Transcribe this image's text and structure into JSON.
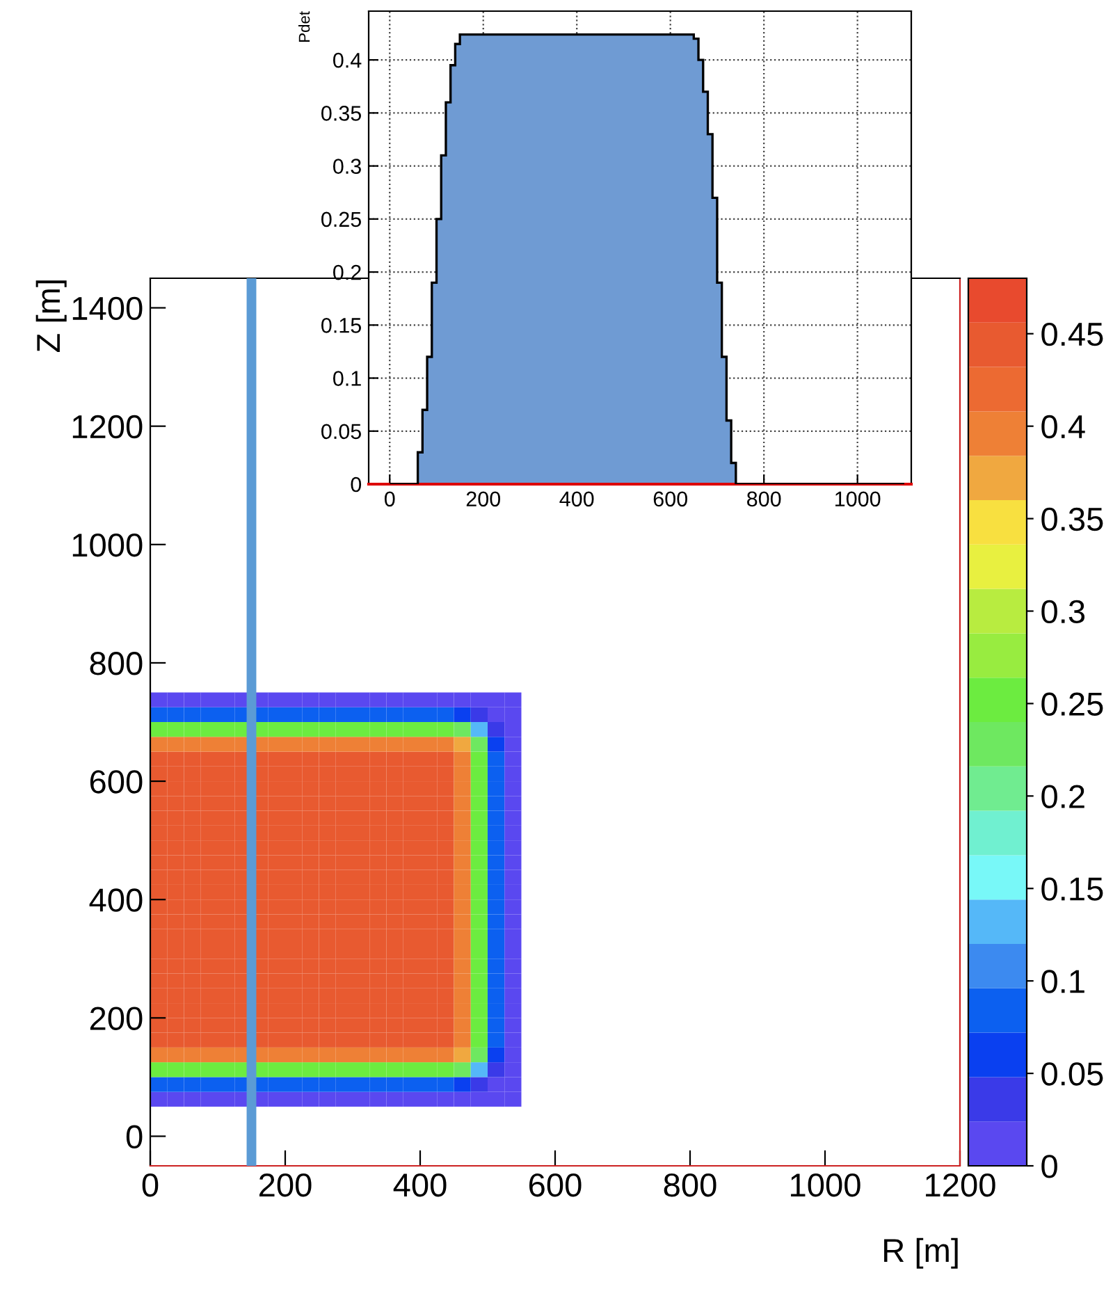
{
  "chart_data": [
    {
      "type": "heatmap",
      "xlabel": "R [m]",
      "ylabel": "Z [m]",
      "x": [
        12.5,
        37.5,
        62.5,
        87.5,
        112.5,
        137.5,
        162.5,
        187.5,
        212.5,
        237.5,
        262.5,
        287.5,
        312.5,
        337.5,
        362.5,
        387.5,
        412.5,
        437.5,
        462.5,
        487.5,
        512.5,
        537.5
      ],
      "y": [
        737.5,
        712.5,
        687.5,
        662.5,
        637.5,
        612.5,
        587.5,
        562.5,
        537.5,
        512.5,
        487.5,
        462.5,
        437.5,
        412.5,
        387.5,
        362.5,
        337.5,
        312.5,
        287.5,
        262.5,
        237.5,
        212.5,
        187.5,
        162.5,
        137.5,
        112.5,
        87.5,
        62.5
      ],
      "cells": [
        [
          0.01,
          0.01,
          0.01,
          0.01,
          0.01,
          0.01,
          0.01,
          0.01,
          0.01,
          0.01,
          0.01,
          0.01,
          0.01,
          0.01,
          0.01,
          0.01,
          0.01,
          0.01,
          0.01,
          0.01,
          0.0,
          0.0
        ],
        [
          0.08,
          0.08,
          0.08,
          0.08,
          0.08,
          0.08,
          0.08,
          0.08,
          0.08,
          0.08,
          0.08,
          0.08,
          0.08,
          0.08,
          0.08,
          0.08,
          0.08,
          0.08,
          0.07,
          0.04,
          0.01,
          0.0
        ],
        [
          0.25,
          0.25,
          0.25,
          0.25,
          0.25,
          0.25,
          0.25,
          0.25,
          0.25,
          0.25,
          0.25,
          0.25,
          0.25,
          0.25,
          0.25,
          0.25,
          0.25,
          0.25,
          0.22,
          0.14,
          0.04,
          0.01
        ],
        [
          0.4,
          0.4,
          0.4,
          0.4,
          0.4,
          0.4,
          0.4,
          0.4,
          0.4,
          0.4,
          0.4,
          0.4,
          0.4,
          0.4,
          0.4,
          0.4,
          0.4,
          0.4,
          0.36,
          0.22,
          0.07,
          0.01
        ],
        [
          0.45,
          0.45,
          0.45,
          0.45,
          0.45,
          0.45,
          0.45,
          0.45,
          0.45,
          0.45,
          0.45,
          0.45,
          0.45,
          0.45,
          0.45,
          0.45,
          0.45,
          0.45,
          0.4,
          0.25,
          0.08,
          0.01
        ],
        [
          0.45,
          0.45,
          0.45,
          0.45,
          0.45,
          0.45,
          0.45,
          0.45,
          0.45,
          0.45,
          0.45,
          0.45,
          0.45,
          0.45,
          0.45,
          0.45,
          0.45,
          0.45,
          0.4,
          0.25,
          0.08,
          0.01
        ],
        [
          0.45,
          0.45,
          0.45,
          0.45,
          0.45,
          0.45,
          0.45,
          0.45,
          0.45,
          0.45,
          0.45,
          0.45,
          0.45,
          0.45,
          0.45,
          0.45,
          0.45,
          0.45,
          0.4,
          0.25,
          0.08,
          0.01
        ],
        [
          0.45,
          0.45,
          0.45,
          0.45,
          0.45,
          0.45,
          0.45,
          0.45,
          0.45,
          0.45,
          0.45,
          0.45,
          0.45,
          0.45,
          0.45,
          0.45,
          0.45,
          0.45,
          0.4,
          0.25,
          0.08,
          0.01
        ],
        [
          0.45,
          0.45,
          0.45,
          0.45,
          0.45,
          0.45,
          0.45,
          0.45,
          0.45,
          0.45,
          0.45,
          0.45,
          0.45,
          0.45,
          0.45,
          0.45,
          0.45,
          0.45,
          0.4,
          0.25,
          0.08,
          0.01
        ],
        [
          0.45,
          0.45,
          0.45,
          0.45,
          0.45,
          0.45,
          0.45,
          0.45,
          0.45,
          0.45,
          0.45,
          0.45,
          0.45,
          0.45,
          0.45,
          0.45,
          0.45,
          0.45,
          0.4,
          0.25,
          0.08,
          0.01
        ],
        [
          0.45,
          0.45,
          0.45,
          0.45,
          0.45,
          0.45,
          0.45,
          0.45,
          0.45,
          0.45,
          0.45,
          0.45,
          0.45,
          0.45,
          0.45,
          0.45,
          0.45,
          0.45,
          0.4,
          0.25,
          0.08,
          0.01
        ],
        [
          0.45,
          0.45,
          0.45,
          0.45,
          0.45,
          0.45,
          0.45,
          0.45,
          0.45,
          0.45,
          0.45,
          0.45,
          0.45,
          0.45,
          0.45,
          0.45,
          0.45,
          0.45,
          0.4,
          0.25,
          0.08,
          0.01
        ],
        [
          0.45,
          0.45,
          0.45,
          0.45,
          0.45,
          0.45,
          0.45,
          0.45,
          0.45,
          0.45,
          0.45,
          0.45,
          0.45,
          0.45,
          0.45,
          0.45,
          0.45,
          0.45,
          0.4,
          0.25,
          0.08,
          0.01
        ],
        [
          0.45,
          0.45,
          0.45,
          0.45,
          0.45,
          0.45,
          0.45,
          0.45,
          0.45,
          0.45,
          0.45,
          0.45,
          0.45,
          0.45,
          0.45,
          0.45,
          0.45,
          0.45,
          0.4,
          0.25,
          0.08,
          0.01
        ],
        [
          0.45,
          0.45,
          0.45,
          0.45,
          0.45,
          0.45,
          0.45,
          0.45,
          0.45,
          0.45,
          0.45,
          0.45,
          0.45,
          0.45,
          0.45,
          0.45,
          0.45,
          0.45,
          0.4,
          0.25,
          0.08,
          0.01
        ],
        [
          0.45,
          0.45,
          0.45,
          0.45,
          0.45,
          0.45,
          0.45,
          0.45,
          0.45,
          0.45,
          0.45,
          0.45,
          0.45,
          0.45,
          0.45,
          0.45,
          0.45,
          0.45,
          0.4,
          0.25,
          0.08,
          0.01
        ],
        [
          0.45,
          0.45,
          0.45,
          0.45,
          0.45,
          0.45,
          0.45,
          0.45,
          0.45,
          0.45,
          0.45,
          0.45,
          0.45,
          0.45,
          0.45,
          0.45,
          0.45,
          0.45,
          0.4,
          0.25,
          0.08,
          0.01
        ],
        [
          0.45,
          0.45,
          0.45,
          0.45,
          0.45,
          0.45,
          0.45,
          0.45,
          0.45,
          0.45,
          0.45,
          0.45,
          0.45,
          0.45,
          0.45,
          0.45,
          0.45,
          0.45,
          0.4,
          0.25,
          0.08,
          0.01
        ],
        [
          0.45,
          0.45,
          0.45,
          0.45,
          0.45,
          0.45,
          0.45,
          0.45,
          0.45,
          0.45,
          0.45,
          0.45,
          0.45,
          0.45,
          0.45,
          0.45,
          0.45,
          0.45,
          0.4,
          0.25,
          0.08,
          0.01
        ],
        [
          0.45,
          0.45,
          0.45,
          0.45,
          0.45,
          0.45,
          0.45,
          0.45,
          0.45,
          0.45,
          0.45,
          0.45,
          0.45,
          0.45,
          0.45,
          0.45,
          0.45,
          0.45,
          0.4,
          0.25,
          0.08,
          0.01
        ],
        [
          0.45,
          0.45,
          0.45,
          0.45,
          0.45,
          0.45,
          0.45,
          0.45,
          0.45,
          0.45,
          0.45,
          0.45,
          0.45,
          0.45,
          0.45,
          0.45,
          0.45,
          0.45,
          0.4,
          0.25,
          0.08,
          0.01
        ],
        [
          0.45,
          0.45,
          0.45,
          0.45,
          0.45,
          0.45,
          0.45,
          0.45,
          0.45,
          0.45,
          0.45,
          0.45,
          0.45,
          0.45,
          0.45,
          0.45,
          0.45,
          0.45,
          0.4,
          0.25,
          0.08,
          0.01
        ],
        [
          0.45,
          0.45,
          0.45,
          0.45,
          0.45,
          0.45,
          0.45,
          0.45,
          0.45,
          0.45,
          0.45,
          0.45,
          0.45,
          0.45,
          0.45,
          0.45,
          0.45,
          0.45,
          0.4,
          0.25,
          0.08,
          0.01
        ],
        [
          0.45,
          0.45,
          0.45,
          0.45,
          0.45,
          0.45,
          0.45,
          0.45,
          0.45,
          0.45,
          0.45,
          0.45,
          0.45,
          0.45,
          0.45,
          0.45,
          0.45,
          0.45,
          0.4,
          0.25,
          0.08,
          0.01
        ],
        [
          0.4,
          0.4,
          0.4,
          0.4,
          0.4,
          0.4,
          0.4,
          0.4,
          0.4,
          0.4,
          0.4,
          0.4,
          0.4,
          0.4,
          0.4,
          0.4,
          0.4,
          0.4,
          0.36,
          0.22,
          0.07,
          0.01
        ],
        [
          0.25,
          0.25,
          0.25,
          0.25,
          0.25,
          0.25,
          0.25,
          0.25,
          0.25,
          0.25,
          0.25,
          0.25,
          0.25,
          0.25,
          0.25,
          0.25,
          0.25,
          0.25,
          0.22,
          0.14,
          0.04,
          0.01
        ],
        [
          0.08,
          0.08,
          0.08,
          0.08,
          0.08,
          0.08,
          0.08,
          0.08,
          0.08,
          0.08,
          0.08,
          0.08,
          0.08,
          0.08,
          0.08,
          0.08,
          0.08,
          0.08,
          0.07,
          0.04,
          0.01,
          0.0
        ],
        [
          0.01,
          0.01,
          0.01,
          0.01,
          0.01,
          0.01,
          0.01,
          0.01,
          0.01,
          0.01,
          0.01,
          0.01,
          0.01,
          0.01,
          0.01,
          0.01,
          0.01,
          0.01,
          0.01,
          0.01,
          0.0,
          0.0
        ]
      ],
      "colors": [
        "#5a48f0",
        "#3a3ae8",
        "#0a40f0",
        "#0c60f0",
        "#3c8af0",
        "#55b8f8",
        "#78f8f8",
        "#70f0d0",
        "#70ec90",
        "#6ee860",
        "#6cec40",
        "#98ec40",
        "#b8ec40",
        "#e8f040",
        "#f8e040",
        "#f0a840",
        "#ee8036",
        "#ec6a32",
        "#e85a30",
        "#e84a2e"
      ],
      "clim": [
        0,
        0.48
      ],
      "cticks": [
        0,
        0.05,
        0.1,
        0.15,
        0.2,
        0.25,
        0.3,
        0.35,
        0.4,
        0.45
      ],
      "xlim": [
        0,
        1200
      ],
      "xticks": [
        0,
        200,
        400,
        600,
        800,
        1000,
        1200
      ],
      "ylim": [
        -50,
        1450
      ],
      "yticks": [
        0,
        200,
        400,
        600,
        800,
        1000,
        1200,
        1400
      ],
      "ref_lines": [
        {
          "axis": "x",
          "value": 150,
          "color": "#5b9bd5"
        }
      ],
      "grid": false
    },
    {
      "type": "histogram",
      "ylabel": "Pdet",
      "color": "#6f9bd3",
      "bins": [
        0,
        60,
        70,
        80,
        90,
        100,
        110,
        120,
        130,
        140,
        150,
        650,
        660,
        670,
        680,
        690,
        700,
        710,
        720,
        730,
        740,
        1100
      ],
      "values": [
        0,
        0.03,
        0.07,
        0.12,
        0.19,
        0.25,
        0.31,
        0.36,
        0.395,
        0.415,
        0.424,
        0.42,
        0.4,
        0.37,
        0.33,
        0.27,
        0.19,
        0.12,
        0.06,
        0.02,
        0
      ],
      "xlim": [
        -45,
        1115
      ],
      "xticks": [
        0,
        200,
        400,
        600,
        800,
        1000
      ],
      "ylim": [
        0,
        0.446
      ],
      "yticks": [
        0,
        0.05,
        0.1,
        0.15,
        0.2,
        0.25,
        0.3,
        0.35,
        0.4
      ],
      "grid": true
    }
  ]
}
